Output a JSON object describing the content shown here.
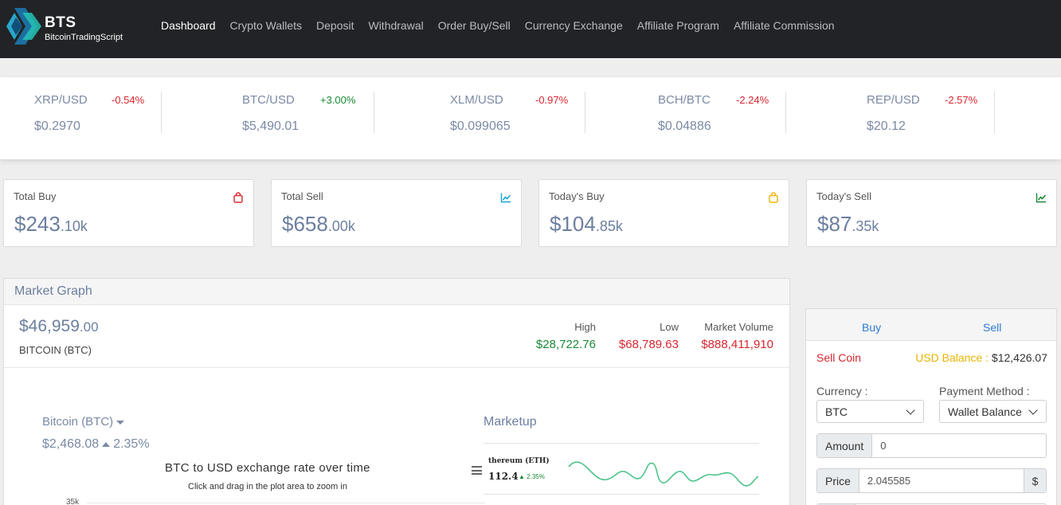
{
  "brand": {
    "name": "BTS",
    "tagline": "BitcoinTradingScript"
  },
  "nav": [
    {
      "label": "Dashboard",
      "active": true
    },
    {
      "label": "Crypto Wallets"
    },
    {
      "label": "Deposit"
    },
    {
      "label": "Withdrawal"
    },
    {
      "label": "Order Buy/Sell"
    },
    {
      "label": "Currency Exchange"
    },
    {
      "label": "Affiliate Program"
    },
    {
      "label": "Affiliate Commission"
    }
  ],
  "ticker": [
    {
      "pair": "XRP/USD",
      "change": "-0.54%",
      "price": "$0.2970",
      "direction": "down"
    },
    {
      "pair": "BTC/USD",
      "change": "+3.00%",
      "price": "$5,490.01",
      "direction": "up"
    },
    {
      "pair": "XLM/USD",
      "change": "-0.97%",
      "price": "$0.099065",
      "direction": "down"
    },
    {
      "pair": "BCH/BTC",
      "change": "-2.24%",
      "price": "$0.04886",
      "direction": "down"
    },
    {
      "pair": "REP/USD",
      "change": "-2.57%",
      "price": "$20.12",
      "direction": "down"
    }
  ],
  "stats": [
    {
      "label": "Total Buy",
      "value": "$243",
      "decimals": ".10k",
      "icon": "shopping-bag-icon",
      "icon_color": "#d9262f"
    },
    {
      "label": "Total Sell",
      "value": "$658",
      "decimals": ".00k",
      "icon": "line-chart-icon",
      "icon_color": "#17a2d8"
    },
    {
      "label": "Today's Buy",
      "value": "$104",
      "decimals": ".85k",
      "icon": "shopping-bag-icon",
      "icon_color": "#f0b400"
    },
    {
      "label": "Today's Sell",
      "value": "$87",
      "decimals": ".35k",
      "icon": "line-chart-icon",
      "icon_color": "#198a35"
    }
  ],
  "market": {
    "title": "Market Graph",
    "price": "$46,959",
    "price_decimals": ".00",
    "coin": "BITCOIN (BTC)",
    "high_label": "High",
    "high": "$28,722.76",
    "low_label": "Low",
    "low": "$68,789.63",
    "volume_label": "Market Volume",
    "volume": "$888,411,910",
    "selector_label": "Bitcoin (BTC)",
    "selector_price": "$2,468.08",
    "selector_change": "2.35%",
    "chart_title": "BTC to USD exchange rate over time",
    "chart_subtitle": "Click and drag in the plot area to zoom in",
    "y_tick_top": "35k"
  },
  "markup": {
    "title": "Marketup",
    "items": [
      {
        "name": "thereum (ETH)",
        "price": "112.4",
        "change": "2.35%"
      }
    ]
  },
  "trade": {
    "tab_buy": "Buy",
    "tab_sell": "Sell",
    "sell_coin": "Sell Coin",
    "usd_balance_label": "USD Balance :",
    "usd_balance": "$12,426.07",
    "currency_label": "Currency :",
    "currency_value": "BTC",
    "payment_label": "Payment Method :",
    "payment_value": "Wallet Balance",
    "amount_label": "Amount",
    "amount_value": "0",
    "price_label": "Price",
    "price_value": "2.045585",
    "price_unit": "$"
  }
}
